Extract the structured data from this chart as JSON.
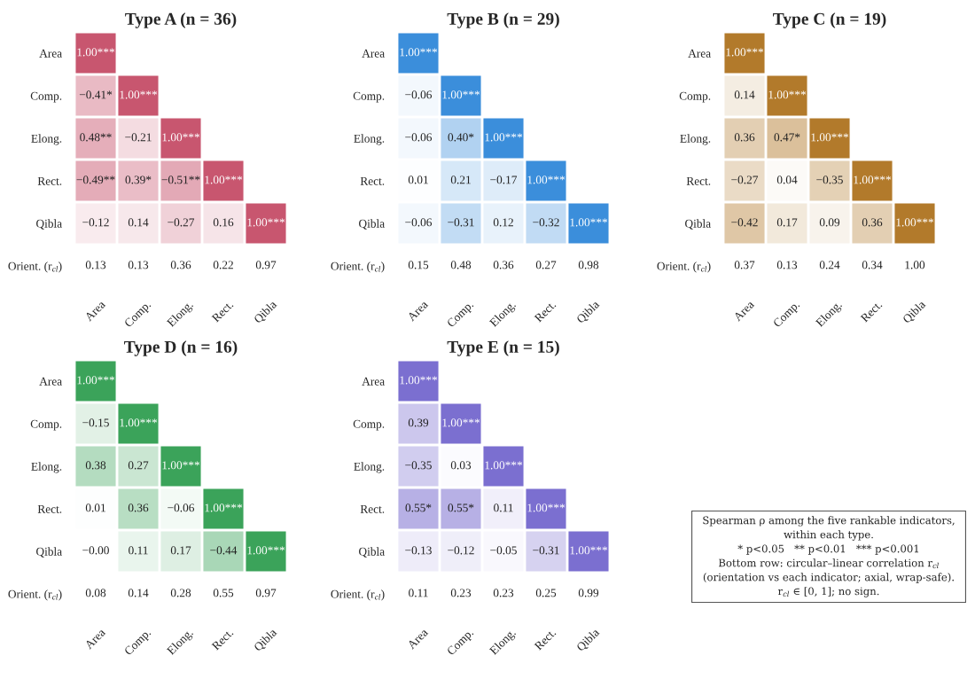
{
  "chart_data": [
    {
      "type": "heatmap",
      "title": "Type A (n = 36)",
      "color": "#c8566f",
      "categories": [
        "Area",
        "Comp.",
        "Elong.",
        "Rect.",
        "Qibla"
      ],
      "y_categories": [
        "Area",
        "Comp.",
        "Elong.",
        "Rect.",
        "Qibla",
        "Orient. (r$_{cl}$)"
      ],
      "cells": [
        [
          1.0,
          null,
          null,
          null,
          null
        ],
        [
          -0.41,
          1.0,
          null,
          null,
          null
        ],
        [
          0.48,
          -0.21,
          1.0,
          null,
          null
        ],
        [
          -0.49,
          0.39,
          -0.51,
          1.0,
          null
        ],
        [
          -0.12,
          0.14,
          -0.27,
          0.16,
          1.0
        ],
        [
          null,
          null,
          null,
          null,
          null
        ]
      ],
      "cell_labels": [
        [
          "1.00***",
          null,
          null,
          null,
          null
        ],
        [
          "−0.41*",
          "1.00***",
          null,
          null,
          null
        ],
        [
          "0.48**",
          "−0.21",
          "1.00***",
          null,
          null
        ],
        [
          "−0.49**",
          "0.39*",
          "−0.51**",
          "1.00***",
          null
        ],
        [
          "−0.12",
          "0.14",
          "−0.27",
          "0.16",
          "1.00***"
        ],
        [
          "0.13",
          "0.13",
          "0.36",
          "0.22",
          "0.97"
        ]
      ]
    },
    {
      "type": "heatmap",
      "title": "Type B (n = 29)",
      "color": "#3b8edb",
      "categories": [
        "Area",
        "Comp.",
        "Elong.",
        "Rect.",
        "Qibla"
      ],
      "y_categories": [
        "Area",
        "Comp.",
        "Elong.",
        "Rect.",
        "Qibla",
        "Orient. (r$_{cl}$)"
      ],
      "cells": [
        [
          1.0,
          null,
          null,
          null,
          null
        ],
        [
          -0.06,
          1.0,
          null,
          null,
          null
        ],
        [
          -0.06,
          0.4,
          1.0,
          null,
          null
        ],
        [
          0.01,
          0.21,
          -0.17,
          1.0,
          null
        ],
        [
          -0.06,
          -0.31,
          0.12,
          -0.32,
          1.0
        ],
        [
          null,
          null,
          null,
          null,
          null
        ]
      ],
      "cell_labels": [
        [
          "1.00***",
          null,
          null,
          null,
          null
        ],
        [
          "−0.06",
          "1.00***",
          null,
          null,
          null
        ],
        [
          "−0.06",
          "0.40*",
          "1.00***",
          null,
          null
        ],
        [
          "0.01",
          "0.21",
          "−0.17",
          "1.00***",
          null
        ],
        [
          "−0.06",
          "−0.31",
          "0.12",
          "−0.32",
          "1.00***"
        ],
        [
          "0.15",
          "0.48",
          "0.36",
          "0.27",
          "0.98"
        ]
      ]
    },
    {
      "type": "heatmap",
      "title": "Type C (n = 19)",
      "color": "#b27a2b",
      "categories": [
        "Area",
        "Comp.",
        "Elong.",
        "Rect.",
        "Qibla"
      ],
      "y_categories": [
        "Area",
        "Comp.",
        "Elong.",
        "Rect.",
        "Qibla",
        "Orient. (r$_{cl}$)"
      ],
      "cells": [
        [
          1.0,
          null,
          null,
          null,
          null
        ],
        [
          0.14,
          1.0,
          null,
          null,
          null
        ],
        [
          0.36,
          0.47,
          1.0,
          null,
          null
        ],
        [
          -0.27,
          0.04,
          -0.35,
          1.0,
          null
        ],
        [
          -0.42,
          0.17,
          0.09,
          0.36,
          1.0
        ],
        [
          null,
          null,
          null,
          null,
          null
        ]
      ],
      "cell_labels": [
        [
          "1.00***",
          null,
          null,
          null,
          null
        ],
        [
          "0.14",
          "1.00***",
          null,
          null,
          null
        ],
        [
          "0.36",
          "0.47*",
          "1.00***",
          null,
          null
        ],
        [
          "−0.27",
          "0.04",
          "−0.35",
          "1.00***",
          null
        ],
        [
          "−0.42",
          "0.17",
          "0.09",
          "0.36",
          "1.00***"
        ],
        [
          "0.37",
          "0.13",
          "0.24",
          "0.34",
          "1.00"
        ]
      ]
    },
    {
      "type": "heatmap",
      "title": "Type D (n = 16)",
      "color": "#3ba35a",
      "categories": [
        "Area",
        "Comp.",
        "Elong.",
        "Rect.",
        "Qibla"
      ],
      "y_categories": [
        "Area",
        "Comp.",
        "Elong.",
        "Rect.",
        "Qibla",
        "Orient. (r$_{cl}$)"
      ],
      "cells": [
        [
          1.0,
          null,
          null,
          null,
          null
        ],
        [
          -0.15,
          1.0,
          null,
          null,
          null
        ],
        [
          0.38,
          0.27,
          1.0,
          null,
          null
        ],
        [
          0.01,
          0.36,
          -0.06,
          1.0,
          null
        ],
        [
          -0.0,
          0.11,
          0.17,
          -0.44,
          1.0
        ],
        [
          null,
          null,
          null,
          null,
          null
        ]
      ],
      "cell_labels": [
        [
          "1.00***",
          null,
          null,
          null,
          null
        ],
        [
          "−0.15",
          "1.00***",
          null,
          null,
          null
        ],
        [
          "0.38",
          "0.27",
          "1.00***",
          null,
          null
        ],
        [
          "0.01",
          "0.36",
          "−0.06",
          "1.00***",
          null
        ],
        [
          "−0.00",
          "0.11",
          "0.17",
          "−0.44",
          "1.00***"
        ],
        [
          "0.08",
          "0.14",
          "0.28",
          "0.55",
          "0.97"
        ]
      ]
    },
    {
      "type": "heatmap",
      "title": "Type E (n = 15)",
      "color": "#7b6fd0",
      "categories": [
        "Area",
        "Comp.",
        "Elong.",
        "Rect.",
        "Qibla"
      ],
      "y_categories": [
        "Area",
        "Comp.",
        "Elong.",
        "Rect.",
        "Qibla",
        "Orient. (r$_{cl}$)"
      ],
      "cells": [
        [
          1.0,
          null,
          null,
          null,
          null
        ],
        [
          0.39,
          1.0,
          null,
          null,
          null
        ],
        [
          -0.35,
          0.03,
          1.0,
          null,
          null
        ],
        [
          0.55,
          0.55,
          0.11,
          1.0,
          null
        ],
        [
          -0.13,
          -0.12,
          -0.05,
          -0.31,
          1.0
        ],
        [
          null,
          null,
          null,
          null,
          null
        ]
      ],
      "cell_labels": [
        [
          "1.00***",
          null,
          null,
          null,
          null
        ],
        [
          "0.39",
          "1.00***",
          null,
          null,
          null
        ],
        [
          "−0.35",
          "0.03",
          "1.00***",
          null,
          null
        ],
        [
          "0.55*",
          "0.55*",
          "0.11",
          "1.00***",
          null
        ],
        [
          "−0.13",
          "−0.12",
          "−0.05",
          "−0.31",
          "1.00***"
        ],
        [
          "0.11",
          "0.23",
          "0.23",
          "0.25",
          "0.99"
        ]
      ]
    },
    {
      "type": "other",
      "annotations": [
        "Spearman ρ among the five rankable indicators,",
        "within each type.",
        "* p<0.05   ** p<0.01   *** p<0.001",
        "Bottom row: circular–linear correlation r$_{cl}$",
        "(orientation vs each indicator; axial, wrap-safe).",
        "r$_{cl}$ ∈ [0, 1]; no sign."
      ]
    }
  ]
}
